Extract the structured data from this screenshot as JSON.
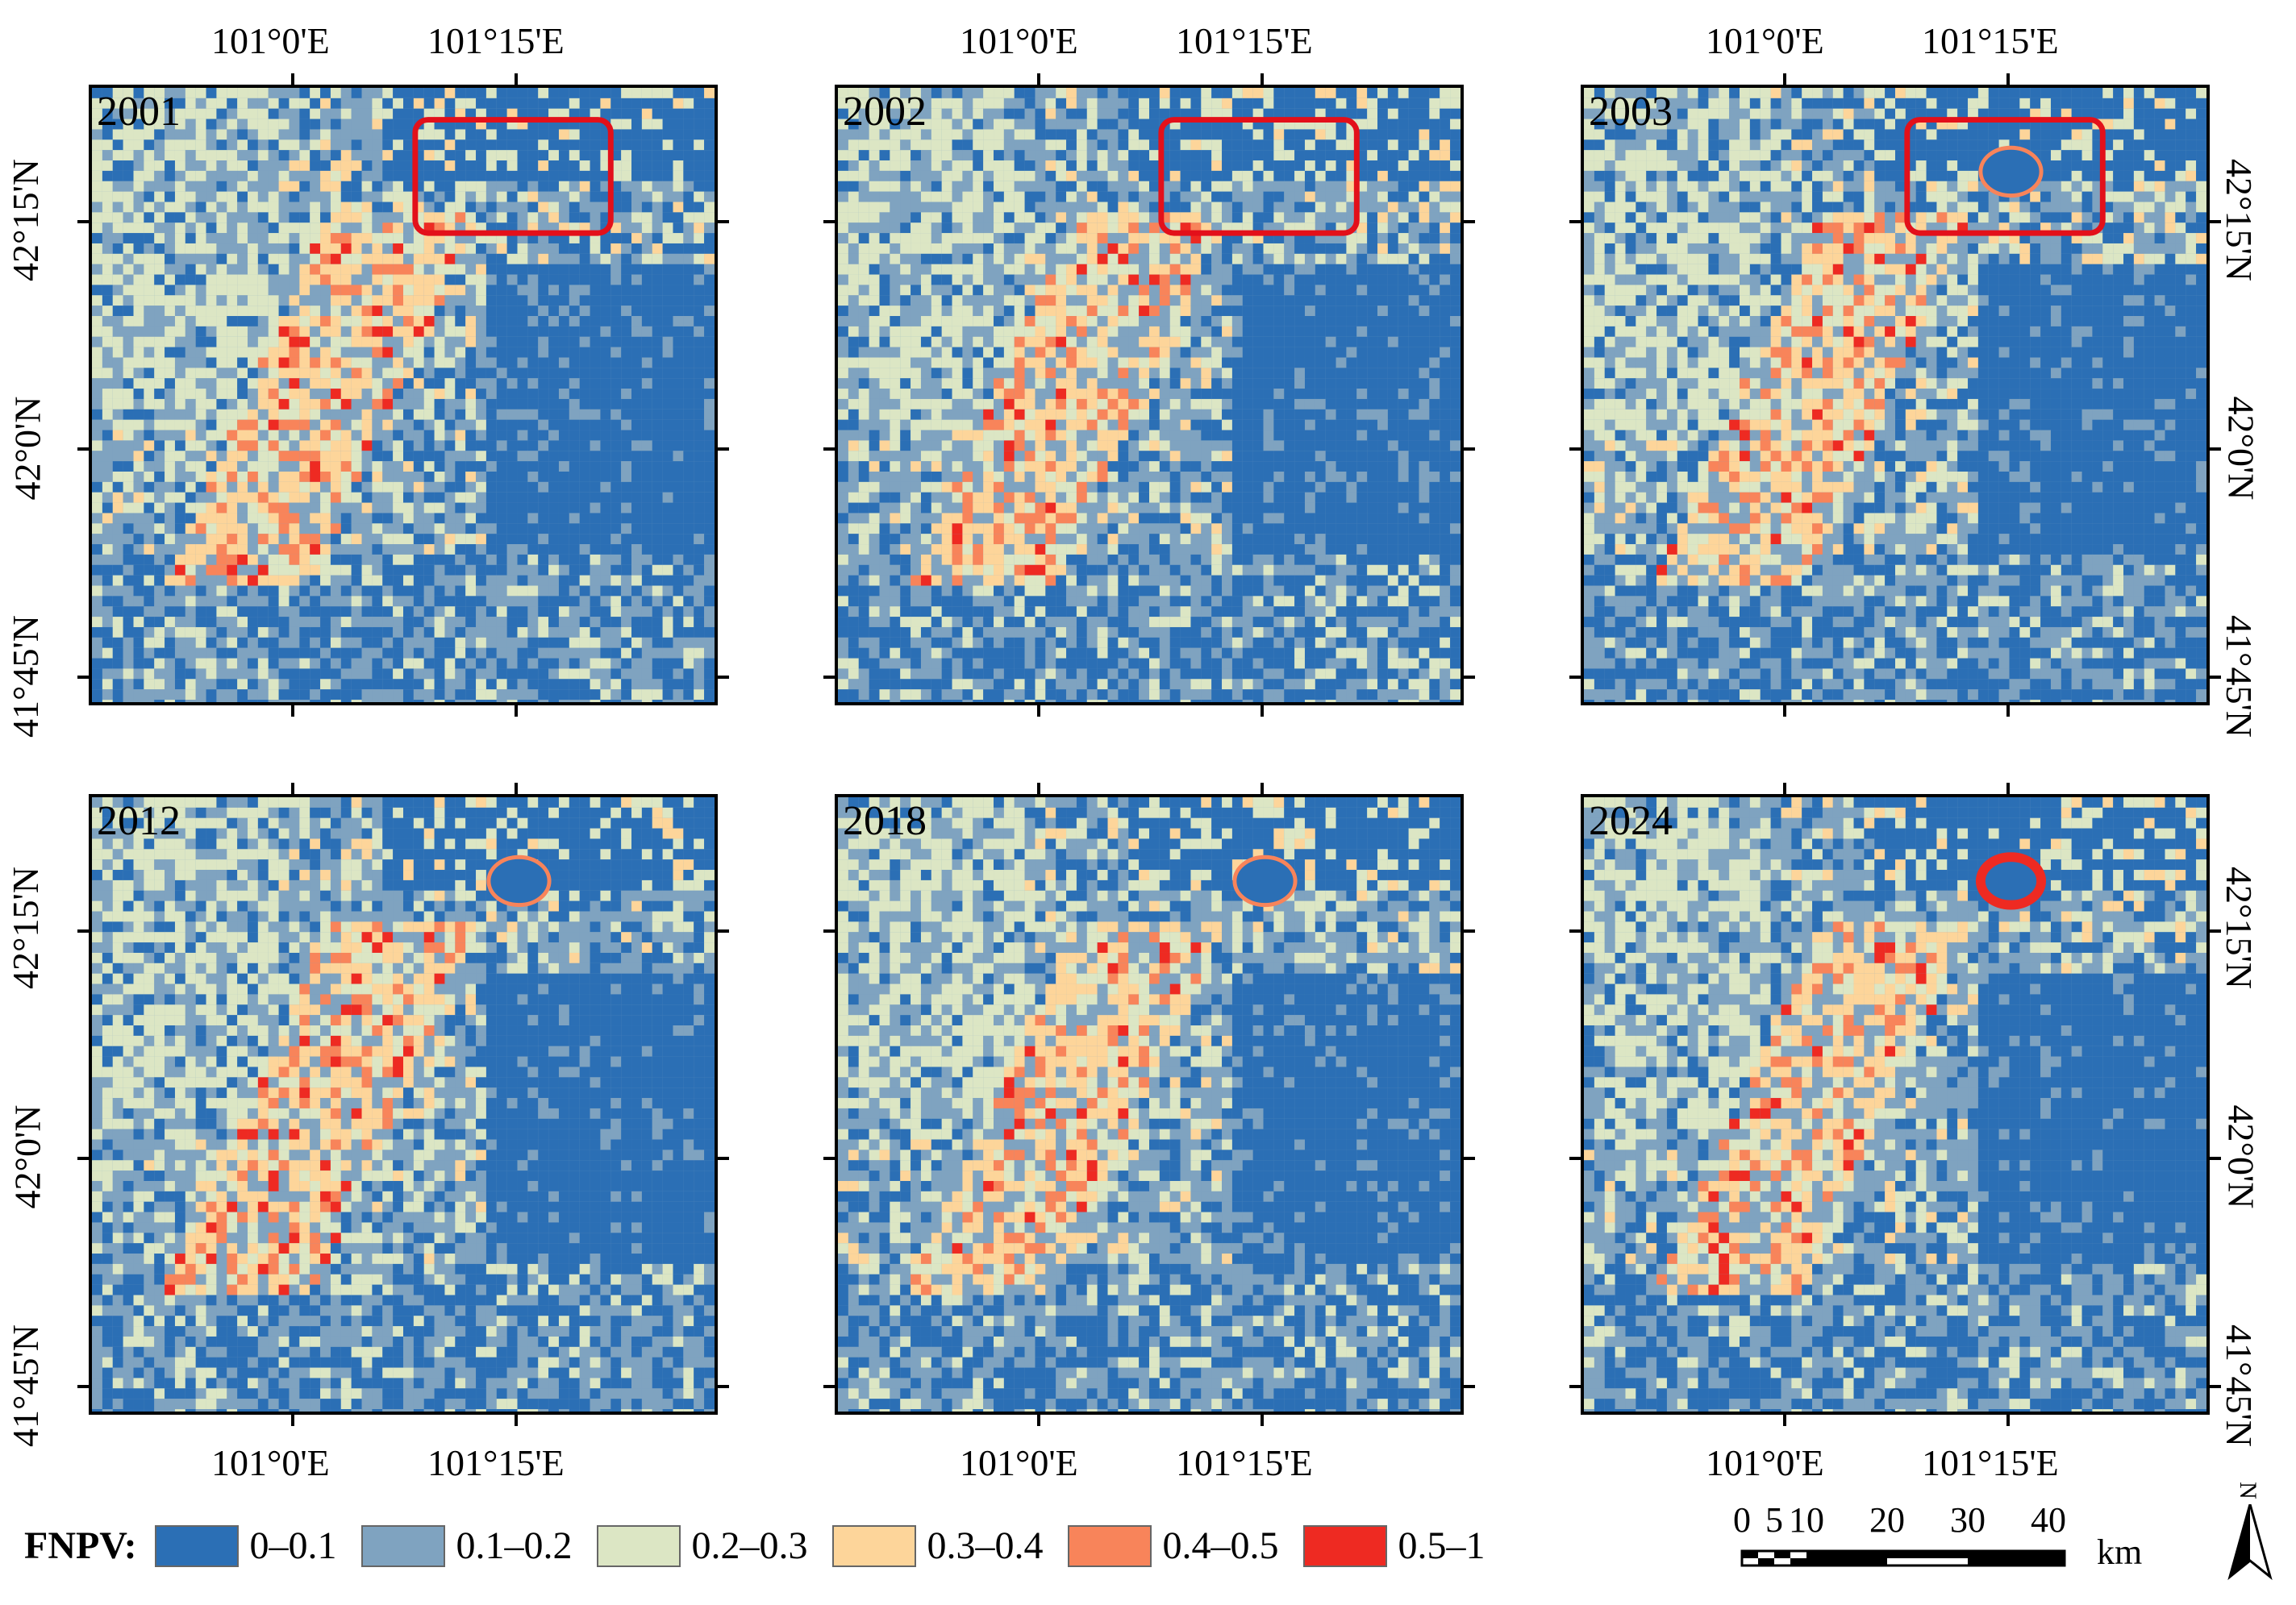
{
  "panels": [
    {
      "year": "2001"
    },
    {
      "year": "2002"
    },
    {
      "year": "2003"
    },
    {
      "year": "2012"
    },
    {
      "year": "2018"
    },
    {
      "year": "2024"
    }
  ],
  "axis_labels": {
    "lon": [
      "101°0'E",
      "101°15'E"
    ],
    "lat": [
      "42°15'N",
      "42°0'N",
      "41°45'N"
    ]
  },
  "legend": {
    "title": "FNPV:",
    "classes": [
      {
        "label": "0–0.1",
        "color": "#2b6fb5"
      },
      {
        "label": "0.1–0.2",
        "color": "#7fa3c0"
      },
      {
        "label": "0.2–0.3",
        "color": "#dce6c4"
      },
      {
        "label": "0.3–0.4",
        "color": "#fdd59a"
      },
      {
        "label": "0.4–0.5",
        "color": "#f8845a"
      },
      {
        "label": "0.5–1",
        "color": "#ee2a22"
      }
    ]
  },
  "scalebar": {
    "ticks": [
      "0",
      "5",
      "10",
      "20",
      "30",
      "40"
    ],
    "unit": "km"
  },
  "north_arrow": {
    "label": "N"
  },
  "highlight_color": "#e3101a"
}
